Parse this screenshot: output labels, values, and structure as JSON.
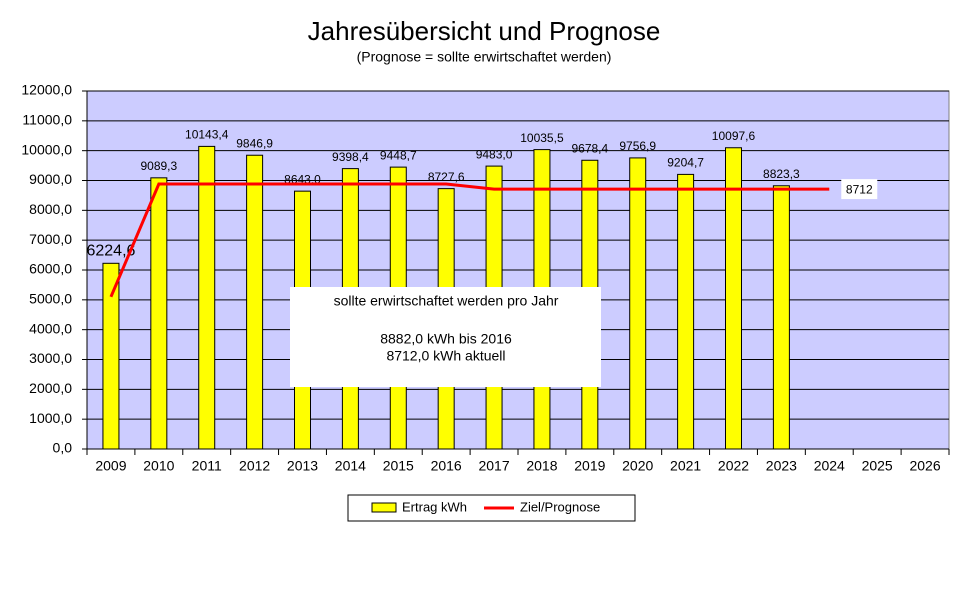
{
  "chart_data": {
    "type": "bar",
    "title": "Jahresübersicht und Prognose",
    "subtitle": "(Prognose = sollte erwirtschaftet werden)",
    "categories": [
      "2009",
      "2010",
      "2011",
      "2012",
      "2013",
      "2014",
      "2015",
      "2016",
      "2017",
      "2018",
      "2019",
      "2020",
      "2021",
      "2022",
      "2023",
      "2024",
      "2025",
      "2026"
    ],
    "series": [
      {
        "name": "Ertrag kWh",
        "type": "bar",
        "color": "#ffff00",
        "values": [
          6224.6,
          9089.3,
          10143.4,
          9846.9,
          8643.0,
          9398.4,
          9448.7,
          8727.6,
          9483.0,
          10035.5,
          9678.4,
          9756.9,
          9204.7,
          10097.6,
          8823.3,
          null,
          null,
          null
        ],
        "value_labels": [
          "6224,6",
          "9089,3",
          "10143,4",
          "9846,9",
          "8643,0",
          "9398,4",
          "9448,7",
          "8727,6",
          "9483,0",
          "10035,5",
          "9678,4",
          "9756,9",
          "9204,7",
          "10097,6",
          "8823,3",
          null,
          null,
          null
        ]
      },
      {
        "name": "Ziel/Prognose",
        "type": "line",
        "color": "#ff0000",
        "values": [
          5100,
          8882,
          8882,
          8882,
          8882,
          8882,
          8882,
          8882,
          8712,
          8712,
          8712,
          8712,
          8712,
          8712,
          8712,
          8712,
          null,
          null
        ],
        "labeled_index": 15
      }
    ],
    "annotation": [
      "sollte erwirtschaftet werden pro Jahr",
      "8882,0 kWh bis 2016",
      "8712,0 kWh aktuell"
    ],
    "ylim": [
      0,
      12000
    ],
    "yticks": [
      {
        "value": 0,
        "label": "0,0"
      },
      {
        "value": 1000,
        "label": "1000,0"
      },
      {
        "value": 2000,
        "label": "2000,0"
      },
      {
        "value": 3000,
        "label": "3000,0"
      },
      {
        "value": 4000,
        "label": "4000,0"
      },
      {
        "value": 5000,
        "label": "5000,0"
      },
      {
        "value": 6000,
        "label": "6000,0"
      },
      {
        "value": 7000,
        "label": "7000,0"
      },
      {
        "value": 8000,
        "label": "8000,0"
      },
      {
        "value": 9000,
        "label": "9000,0"
      },
      {
        "value": 10000,
        "label": "10000,0"
      },
      {
        "value": 11000,
        "label": "11000,0"
      },
      {
        "value": 12000,
        "label": "12000,0"
      }
    ],
    "grid": true,
    "plot_background": "#ccccff"
  }
}
